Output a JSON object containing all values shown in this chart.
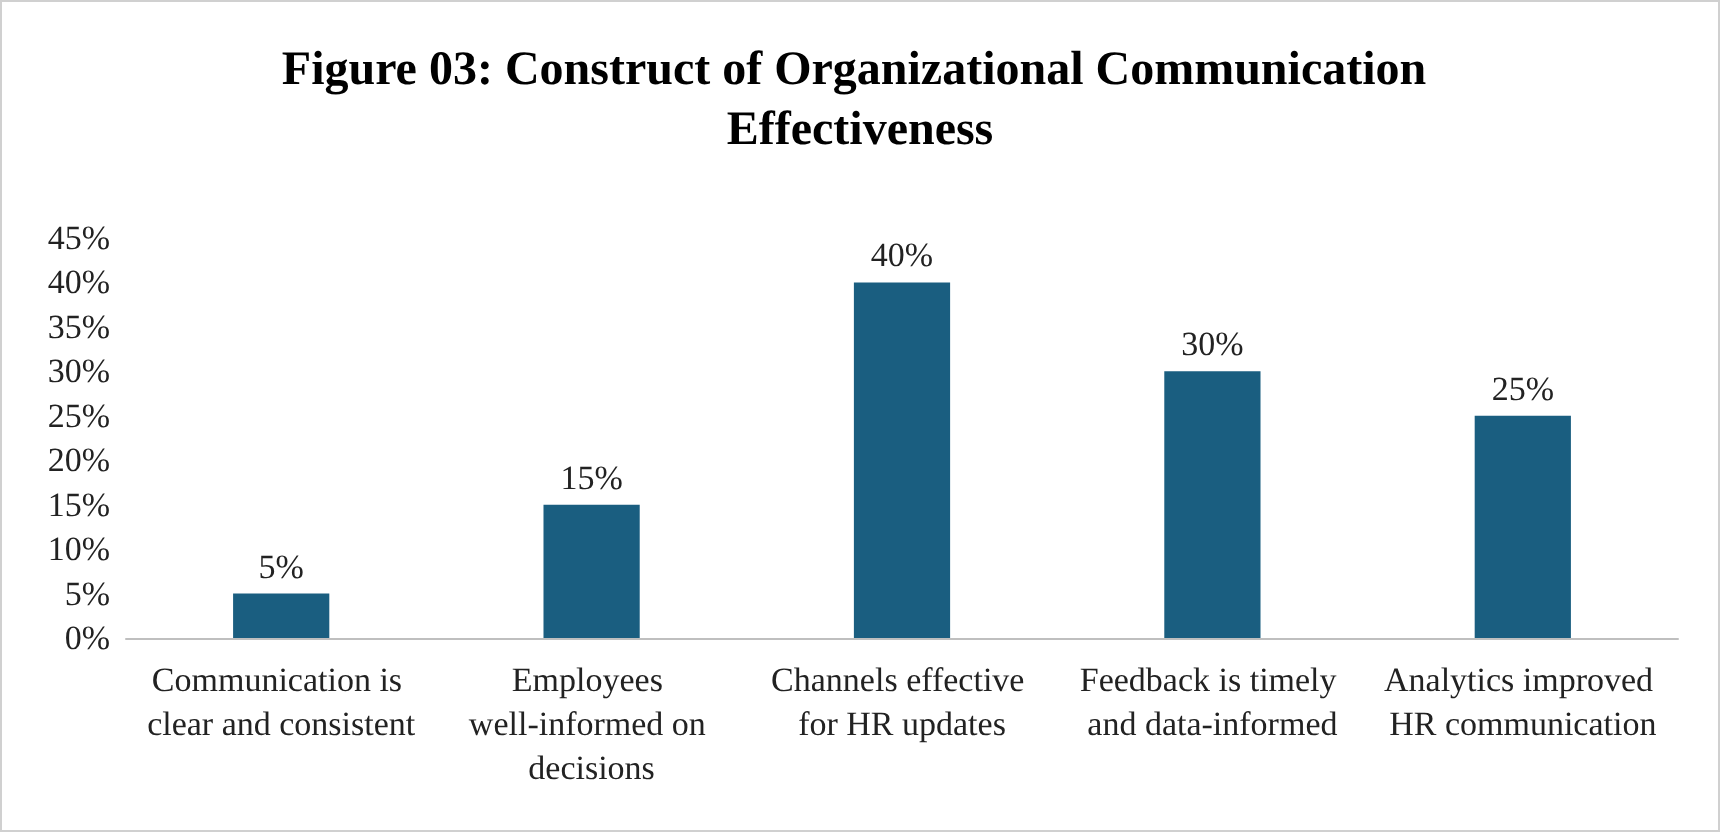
{
  "chart_data": {
    "type": "bar",
    "title": "Figure 03: Construct of Organizational Communication Effectiveness",
    "categories": [
      "Communication is clear and consistent",
      "Employees well-informed on decisions",
      "Channels effective for HR updates",
      "Feedback is timely and data-informed",
      "Analytics improved HR communication"
    ],
    "values": [
      5,
      15,
      40,
      30,
      25
    ],
    "color": "#1a5e80",
    "value_labels": [
      "5%",
      "15%",
      "40%",
      "30%",
      "25%"
    ],
    "ylim": [
      0,
      45
    ],
    "yticks": [
      {
        "value": 0,
        "label": "0%"
      },
      {
        "value": 5,
        "label": "5%"
      },
      {
        "value": 10,
        "label": "10%"
      },
      {
        "value": 15,
        "label": "15%"
      },
      {
        "value": 20,
        "label": "20%"
      },
      {
        "value": 25,
        "label": "25%"
      },
      {
        "value": 30,
        "label": "30%"
      },
      {
        "value": 35,
        "label": "35%"
      },
      {
        "value": 40,
        "label": "40%"
      },
      {
        "value": 45,
        "label": "45%"
      }
    ],
    "grid": false
  }
}
